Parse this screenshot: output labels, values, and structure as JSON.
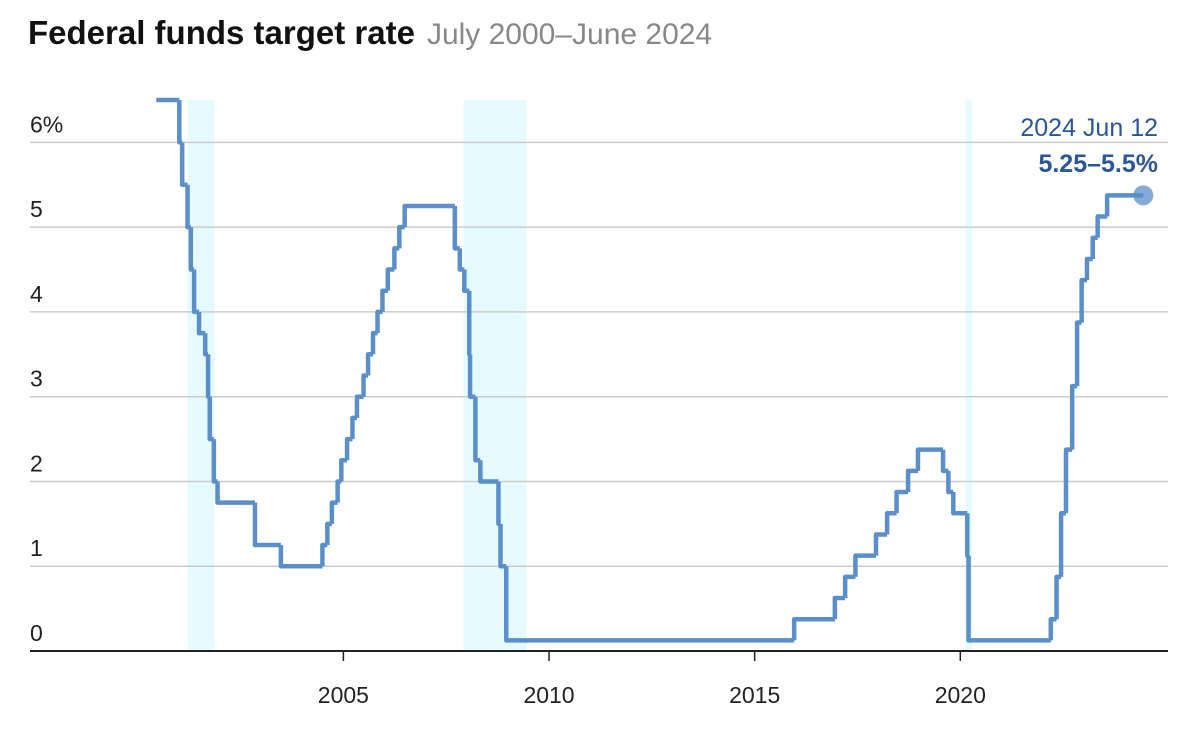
{
  "chart_data": {
    "type": "step-line",
    "title": "Federal funds target rate",
    "subtitle": "July 2000–June 2024",
    "x": [
      2000.45,
      2001.01,
      2001.08,
      2001.21,
      2001.29,
      2001.37,
      2001.49,
      2001.64,
      2001.71,
      2001.75,
      2001.85,
      2001.94,
      2002.85,
      2003.48,
      2004.49,
      2004.61,
      2004.72,
      2004.86,
      2004.95,
      2005.09,
      2005.22,
      2005.33,
      2005.49,
      2005.6,
      2005.72,
      2005.83,
      2005.95,
      2006.08,
      2006.24,
      2006.36,
      2006.49,
      2007.71,
      2007.83,
      2007.94,
      2008.06,
      2008.08,
      2008.21,
      2008.33,
      2008.77,
      2008.82,
      2008.96,
      2015.96,
      2016.95,
      2017.2,
      2017.45,
      2017.95,
      2018.22,
      2018.45,
      2018.73,
      2018.97,
      2019.58,
      2019.71,
      2019.83,
      2020.17,
      2020.2,
      2022.2,
      2022.34,
      2022.45,
      2022.57,
      2022.72,
      2022.84,
      2022.95,
      2023.08,
      2023.22,
      2023.34,
      2023.57,
      2024.45
    ],
    "series": [
      {
        "name": "Federal funds target rate",
        "color": "#5b8fc9",
        "values": [
          6.5,
          6.0,
          5.5,
          5.0,
          4.5,
          4.0,
          3.75,
          3.5,
          3.0,
          2.5,
          2.0,
          1.75,
          1.25,
          1.0,
          1.25,
          1.5,
          1.75,
          2.0,
          2.25,
          2.5,
          2.75,
          3.0,
          3.25,
          3.5,
          3.75,
          4.0,
          4.25,
          4.5,
          4.75,
          5.0,
          5.25,
          4.75,
          4.5,
          4.25,
          3.5,
          3.0,
          2.25,
          2.0,
          1.5,
          1.0,
          0.125,
          0.375,
          0.625,
          0.875,
          1.125,
          1.375,
          1.625,
          1.875,
          2.125,
          2.375,
          2.125,
          1.875,
          1.625,
          1.125,
          0.125,
          0.375,
          0.875,
          1.625,
          2.375,
          3.125,
          3.875,
          4.375,
          4.625,
          4.875,
          5.125,
          5.375,
          5.375
        ]
      }
    ],
    "recessions": [
      [
        2001.21,
        2001.87
      ],
      [
        2007.92,
        2009.45
      ],
      [
        2020.12,
        2020.29
      ]
    ],
    "recession_color": "#e6fbff",
    "annotation": {
      "date": "2024 Jun 12",
      "label": "5.25–5.5%",
      "color": "#2b5797"
    },
    "xlim": [
      1997.38,
      2025.05
    ],
    "xticks": [
      2005,
      2010,
      2015,
      2020
    ],
    "ylim": [
      0,
      6.5
    ],
    "yticks": [
      0,
      1,
      2,
      3,
      4,
      5,
      {
        "value": 6,
        "label": "6%"
      }
    ],
    "grid": true
  }
}
